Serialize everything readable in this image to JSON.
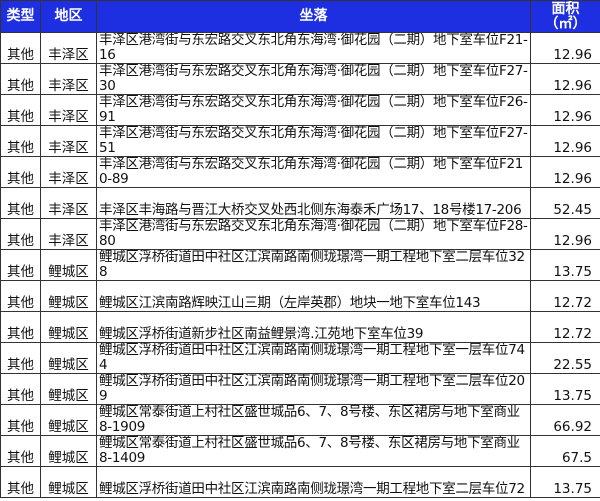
{
  "headers": {
    "type": "类型",
    "region": "地区",
    "location": "坐落",
    "area_line1": "面积",
    "area_line2": "（㎡）"
  },
  "rows": [
    {
      "type": "其他",
      "region": "丰泽区",
      "location": "丰泽区港湾街与东宏路交叉东北角东海湾·御花园（二期）地下室车位F21-16",
      "area": "12.96"
    },
    {
      "type": "其他",
      "region": "丰泽区",
      "location": "丰泽区港湾街与东宏路交叉东北角东海湾·御花园（二期）地下室车位F27-30",
      "area": "12.96"
    },
    {
      "type": "其他",
      "region": "丰泽区",
      "location": "丰泽区港湾街与东宏路交叉东北角东海湾·御花园（二期）地下室车位F26-91",
      "area": "12.96"
    },
    {
      "type": "其他",
      "region": "丰泽区",
      "location": "丰泽区港湾街与东宏路交叉东北角东海湾·御花园（二期）地下室车位F27-51",
      "area": "12.96"
    },
    {
      "type": "其他",
      "region": "丰泽区",
      "location": "丰泽区港湾街与东宏路交叉东北角东海湾·御花园（二期）地下室车位F210-89",
      "area": "12.96"
    },
    {
      "type": "其他",
      "region": "丰泽区",
      "location": "丰泽区丰海路与晋江大桥交叉处西北侧东海泰禾广场17、18号楼17-206",
      "area": "52.45"
    },
    {
      "type": "其他",
      "region": "丰泽区",
      "location": "丰泽区港湾街与东宏路交叉东北角东海湾·御花园（二期）地下室车位F28-80",
      "area": "12.96"
    },
    {
      "type": "其他",
      "region": "鲤城区",
      "location": "鲤城区浮桥街道田中社区江滨南路南侧珑璟湾一期工程地下室二层车位328",
      "area": "13.75"
    },
    {
      "type": "其他",
      "region": "鲤城区",
      "location": "鲤城区江滨南路辉映江山三期（左岸英郡）地块一地下室车位143",
      "area": "12.72"
    },
    {
      "type": "其他",
      "region": "鲤城区",
      "location": "鲤城区浮桥街道新步社区南益鲤景湾.江苑地下室车位39",
      "area": "12.72"
    },
    {
      "type": "其他",
      "region": "鲤城区",
      "location": "鲤城区浮桥街道田中社区江滨南路南侧珑璟湾一期工程地下室一层车位744",
      "area": "22.55"
    },
    {
      "type": "其他",
      "region": "鲤城区",
      "location": "鲤城区浮桥街道田中社区江滨南路南侧珑璟湾一期工程地下室二层车位209",
      "area": "13.75"
    },
    {
      "type": "其他",
      "region": "鲤城区",
      "location": "鲤城区常泰街道上村社区盛世城品6、7、8号楼、东区裙房与地下室商业8-1909",
      "area": "66.92"
    },
    {
      "type": "其他",
      "region": "鲤城区",
      "location": "鲤城区常泰街道上村社区盛世城品6、7、8号楼、东区裙房与地下室商业8-1409",
      "area": "67.5"
    },
    {
      "type": "其他",
      "region": "鲤城区",
      "location": "鲤城区浮桥街道田中社区江滨南路南侧珑璟湾一期工程地下室二层车位72",
      "area": "13.75"
    }
  ]
}
